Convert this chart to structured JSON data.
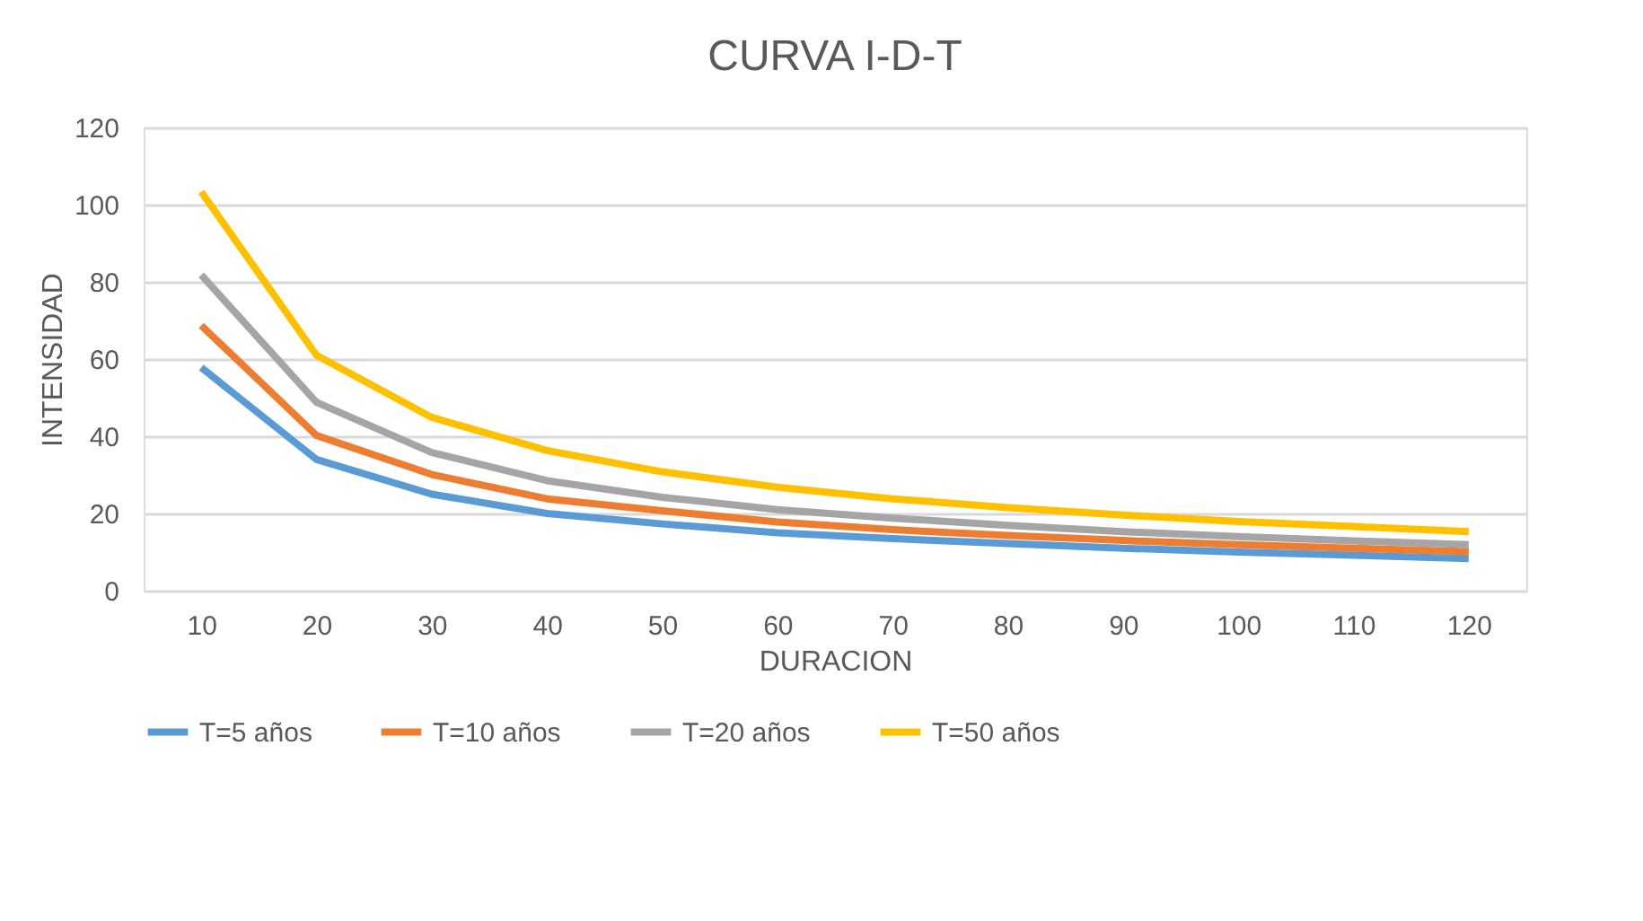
{
  "chart_data": {
    "type": "line",
    "title": "CURVA I-D-T",
    "xlabel": "DURACION",
    "ylabel": "INTENSIDAD",
    "categories": [
      "10",
      "20",
      "30",
      "40",
      "50",
      "60",
      "70",
      "80",
      "90",
      "100",
      "110",
      "120"
    ],
    "ylim": [
      0,
      120
    ],
    "yticks": [
      0,
      20,
      40,
      60,
      80,
      100,
      120
    ],
    "grid": "y",
    "legend": "bottom",
    "marker": "none",
    "line_style": "solid",
    "series": [
      {
        "name": "T=5 años",
        "color": "#5b9bd5",
        "values": [
          57.8,
          34,
          25,
          20,
          17.3,
          15,
          13.5,
          12.2,
          11,
          10,
          9.2,
          8.3
        ]
      },
      {
        "name": "T=10 años",
        "color": "#ed7d31",
        "values": [
          68.7,
          40.2,
          30.1,
          23.8,
          20.7,
          17.8,
          15.8,
          14.3,
          13,
          11.9,
          11,
          10.1
        ]
      },
      {
        "name": "T=20 años",
        "color": "#a5a5a5",
        "values": [
          81.8,
          48.8,
          35.8,
          28.5,
          24.2,
          21,
          18.8,
          16.9,
          15.3,
          14,
          12.9,
          11.9
        ]
      },
      {
        "name": "T=50 años",
        "color": "#ffc000",
        "values": [
          103.3,
          61,
          44.9,
          36.3,
          30.8,
          26.8,
          23.8,
          21.5,
          19.6,
          17.9,
          16.6,
          15.3
        ]
      }
    ]
  }
}
